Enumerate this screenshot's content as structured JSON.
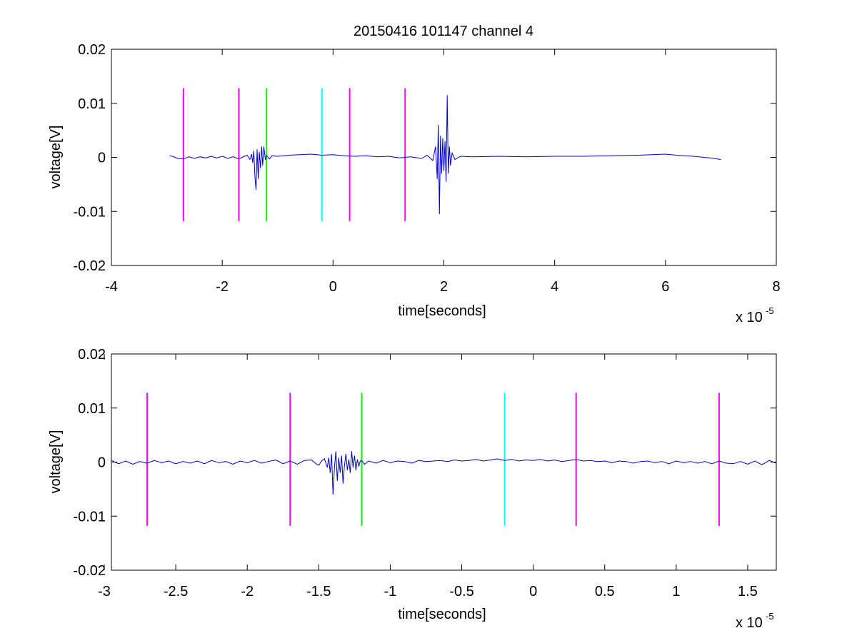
{
  "chart_data": [
    {
      "type": "line",
      "title": "20150416 101147 channel 4",
      "xlabel": "time[seconds]",
      "ylabel": "voltage[V]",
      "xlim": [
        -4,
        8
      ],
      "ylim": [
        -0.02,
        0.02
      ],
      "x_multiplier": "x 10",
      "x_multiplier_exp": "-5",
      "xticks": [
        -4,
        -2,
        0,
        2,
        4,
        6,
        8
      ],
      "xtick_labels": [
        "-4",
        "-2",
        "0",
        "2",
        "4",
        "6",
        "8"
      ],
      "yticks": [
        -0.02,
        -0.01,
        0,
        0.01,
        0.02
      ],
      "ytick_labels": [
        "-0.02",
        "-0.01",
        "0",
        "0.01",
        "0.02"
      ],
      "grid": false,
      "series": [
        {
          "color": "#0000cc",
          "x": [
            -2.95,
            -2.9,
            -2.8,
            -2.7,
            -2.6,
            -2.5,
            -2.4,
            -2.3,
            -2.2,
            -2.1,
            -2.0,
            -1.9,
            -1.8,
            -1.7,
            -1.6,
            -1.55,
            -1.5,
            -1.47,
            -1.45,
            -1.43,
            -1.41,
            -1.39,
            -1.37,
            -1.35,
            -1.33,
            -1.31,
            -1.29,
            -1.27,
            -1.25,
            -1.22,
            -1.2,
            -1.15,
            -1.1,
            -1.0,
            -0.8,
            -0.6,
            -0.4,
            -0.2,
            0.0,
            0.2,
            0.4,
            0.6,
            0.8,
            1.0,
            1.2,
            1.4,
            1.6,
            1.7,
            1.8,
            1.85,
            1.88,
            1.9,
            1.92,
            1.94,
            1.96,
            1.98,
            2.0,
            2.02,
            2.04,
            2.06,
            2.08,
            2.1,
            2.12,
            2.15,
            2.2,
            2.3,
            2.5,
            3.0,
            3.5,
            4.0,
            4.5,
            5.0,
            5.5,
            6.0,
            6.2,
            6.5,
            6.8,
            7.0
          ],
          "y": [
            0.0003,
            0.0002,
            -0.0002,
            -0.0003,
            0.0001,
            -0.0002,
            0.0001,
            -0.0001,
            0.0002,
            -0.0001,
            0.0002,
            -0.0002,
            0.0001,
            -0.0003,
            0.0002,
            0.0004,
            -0.0004,
            0.0006,
            -0.001,
            0.0012,
            -0.0035,
            -0.006,
            0.0015,
            -0.004,
            0.001,
            -0.002,
            0.002,
            -0.0015,
            0.002,
            -0.0005,
            0.0004,
            -0.0003,
            0.0003,
            0.0002,
            0.0004,
            0.0005,
            0.0006,
            0.0004,
            0.0005,
            0.0003,
            0.0002,
            0.0003,
            0.0001,
            0.0002,
            -0.0001,
            0.0001,
            -0.0002,
            0.0004,
            -0.0006,
            0.002,
            -0.004,
            0.006,
            -0.0105,
            0.004,
            -0.003,
            0.0035,
            -0.0025,
            0.003,
            -0.0045,
            0.0115,
            -0.003,
            0.002,
            -0.0015,
            0.0008,
            -0.0004,
            0.0002,
            0.0001,
            0.0002,
            0.0001,
            0.0002,
            0.0002,
            0.0003,
            0.0004,
            0.0006,
            0.0004,
            0.0002,
            -0.0001,
            -0.0004
          ]
        }
      ],
      "markers": [
        {
          "x": -2.7,
          "color": "#ff00ff"
        },
        {
          "x": -1.7,
          "color": "#ff00ff"
        },
        {
          "x": -1.2,
          "color": "#00ff00"
        },
        {
          "x": -0.2,
          "color": "#00ffff"
        },
        {
          "x": 0.3,
          "color": "#ff00ff"
        },
        {
          "x": 1.3,
          "color": "#ff00ff"
        }
      ],
      "marker_range": [
        -0.0118,
        0.0128
      ]
    },
    {
      "type": "line",
      "xlabel": "time[seconds]",
      "ylabel": "voltage[V]",
      "xlim": [
        -2.95,
        1.7
      ],
      "ylim": [
        -0.02,
        0.02
      ],
      "x_multiplier": "x 10",
      "x_multiplier_exp": "-5",
      "xticks": [
        -3,
        -2.5,
        -2,
        -1.5,
        -1,
        -0.5,
        0,
        0.5,
        1,
        1.5
      ],
      "xtick_labels": [
        "-3",
        "-2.5",
        "-2",
        "-1.5",
        "-1",
        "-0.5",
        "0",
        "0.5",
        "1",
        "1.5"
      ],
      "yticks": [
        -0.02,
        -0.01,
        0,
        0.01,
        0.02
      ],
      "ytick_labels": [
        "-0.02",
        "-0.01",
        "0",
        "0.01",
        "0.02"
      ],
      "grid": false,
      "series": [
        {
          "color": "#0000cc",
          "x": [
            -2.95,
            -2.9,
            -2.85,
            -2.8,
            -2.75,
            -2.7,
            -2.65,
            -2.6,
            -2.55,
            -2.5,
            -2.45,
            -2.4,
            -2.35,
            -2.3,
            -2.25,
            -2.2,
            -2.15,
            -2.1,
            -2.05,
            -2.0,
            -1.95,
            -1.9,
            -1.85,
            -1.8,
            -1.75,
            -1.7,
            -1.65,
            -1.6,
            -1.55,
            -1.52,
            -1.5,
            -1.48,
            -1.46,
            -1.44,
            -1.43,
            -1.42,
            -1.41,
            -1.4,
            -1.39,
            -1.38,
            -1.37,
            -1.36,
            -1.35,
            -1.34,
            -1.33,
            -1.32,
            -1.31,
            -1.3,
            -1.29,
            -1.28,
            -1.27,
            -1.26,
            -1.25,
            -1.24,
            -1.23,
            -1.22,
            -1.21,
            -1.2,
            -1.18,
            -1.15,
            -1.1,
            -1.05,
            -1.0,
            -0.95,
            -0.9,
            -0.85,
            -0.8,
            -0.75,
            -0.7,
            -0.65,
            -0.6,
            -0.55,
            -0.5,
            -0.45,
            -0.4,
            -0.35,
            -0.3,
            -0.25,
            -0.2,
            -0.15,
            -0.1,
            -0.05,
            0.0,
            0.05,
            0.1,
            0.15,
            0.2,
            0.25,
            0.3,
            0.35,
            0.4,
            0.45,
            0.5,
            0.55,
            0.6,
            0.65,
            0.7,
            0.75,
            0.8,
            0.85,
            0.9,
            0.95,
            1.0,
            1.05,
            1.1,
            1.15,
            1.2,
            1.25,
            1.3,
            1.35,
            1.4,
            1.45,
            1.5,
            1.55,
            1.6,
            1.65,
            1.7
          ],
          "y": [
            0.0003,
            -0.0003,
            0.0002,
            -0.0004,
            0.0001,
            -0.0002,
            0.0003,
            -0.0001,
            0.0002,
            -0.0003,
            0.0001,
            -0.0002,
            0.0002,
            -0.0003,
            0.0003,
            -0.0001,
            0.0001,
            -0.0004,
            0.0002,
            -0.0001,
            0.0003,
            -0.0002,
            0.0001,
            0.0004,
            -0.0003,
            0.0002,
            -0.0004,
            0.0003,
            0.0004,
            -0.0003,
            -0.0006,
            0.0002,
            0.0006,
            -0.001,
            0.0008,
            -0.002,
            0.0015,
            -0.006,
            -0.001,
            0.002,
            -0.0035,
            0.0008,
            -0.002,
            0.0012,
            -0.004,
            -0.0005,
            0.0015,
            -0.0015,
            0.0005,
            -0.002,
            0.002,
            -0.001,
            0.0012,
            -0.0015,
            0.0005,
            -0.0008,
            0.0002,
            0.0003,
            -0.0004,
            0.0002,
            -0.0002,
            0.0003,
            -0.0001,
            0.0002,
            0.0001,
            -0.0002,
            0.0003,
            0.0001,
            0.0002,
            0.0003,
            0.0001,
            0.0004,
            0.0002,
            0.0003,
            0.0005,
            0.0002,
            0.0004,
            0.0006,
            0.0003,
            0.0005,
            0.0002,
            0.0004,
            0.0003,
            0.0005,
            0.0002,
            0.0004,
            0.0001,
            0.0003,
            0.0005,
            0.0002,
            0.0003,
            0.0001,
            0.0002,
            -0.0001,
            0.0002,
            0.0001,
            -0.0002,
            0.0001,
            0.0002,
            -0.0001,
            0.0001,
            -0.0003,
            0.0002,
            -0.0001,
            0.0001,
            -0.0002,
            0.0001,
            -0.0003,
            0.0002,
            -0.0002,
            -0.0003,
            0.0001,
            -0.0004,
            0.0002,
            -0.0005,
            0.0003,
            -0.0002
          ]
        }
      ],
      "markers": [
        {
          "x": -2.7,
          "color": "#ff00ff"
        },
        {
          "x": -1.7,
          "color": "#ff00ff"
        },
        {
          "x": -1.2,
          "color": "#00ff00"
        },
        {
          "x": -0.2,
          "color": "#00ffff"
        },
        {
          "x": 0.3,
          "color": "#ff00ff"
        },
        {
          "x": 1.3,
          "color": "#ff00ff"
        }
      ],
      "marker_range": [
        -0.0118,
        0.0128
      ]
    }
  ]
}
